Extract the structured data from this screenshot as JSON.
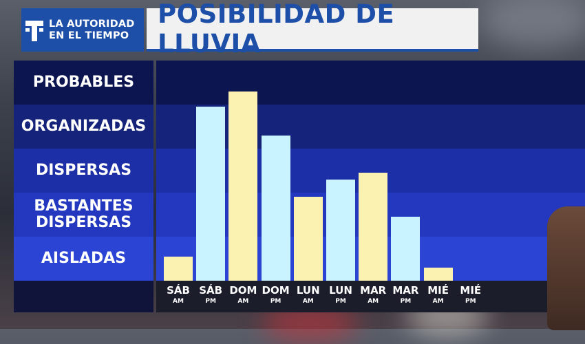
{
  "logo": {
    "icon": "telemundo-t-icon",
    "line1": "LA AUTORIDAD",
    "line2": "EN EL TIEMPO"
  },
  "title": "POSIBILIDAD DE LLUVIA",
  "colors": {
    "am_bar": "#fbf2b2",
    "pm_bar": "#c9f3ff",
    "title_text": "#1d4fa8",
    "logo_bg": "#1d4fa8"
  },
  "chart_data": {
    "type": "bar",
    "title": "POSIBILIDAD DE LLUVIA",
    "y_categories": [
      "AISLADAS",
      "BASTANTES DISPERSAS",
      "DISPERSAS",
      "ORGANIZADAS",
      "PROBABLES"
    ],
    "y_labels_top_to_bottom": [
      "PROBABLES",
      "ORGANIZADAS",
      "DISPERSAS",
      "BASTANTES\nDISPERSAS",
      "AISLADAS"
    ],
    "ylim": [
      0,
      5
    ],
    "categories": [
      {
        "day": "SÁB",
        "period": "AM"
      },
      {
        "day": "SÁB",
        "period": "PM"
      },
      {
        "day": "DOM",
        "period": "AM"
      },
      {
        "day": "DOM",
        "period": "PM"
      },
      {
        "day": "LUN",
        "period": "AM"
      },
      {
        "day": "LUN",
        "period": "PM"
      },
      {
        "day": "MAR",
        "period": "AM"
      },
      {
        "day": "MAR",
        "period": "PM"
      },
      {
        "day": "MIÉ",
        "period": "AM"
      },
      {
        "day": "MIÉ",
        "period": "PM"
      }
    ],
    "values": [
      0.55,
      3.95,
      4.3,
      3.3,
      1.9,
      2.3,
      2.45,
      1.45,
      0.3,
      0
    ],
    "legend": "none",
    "grid": false
  }
}
